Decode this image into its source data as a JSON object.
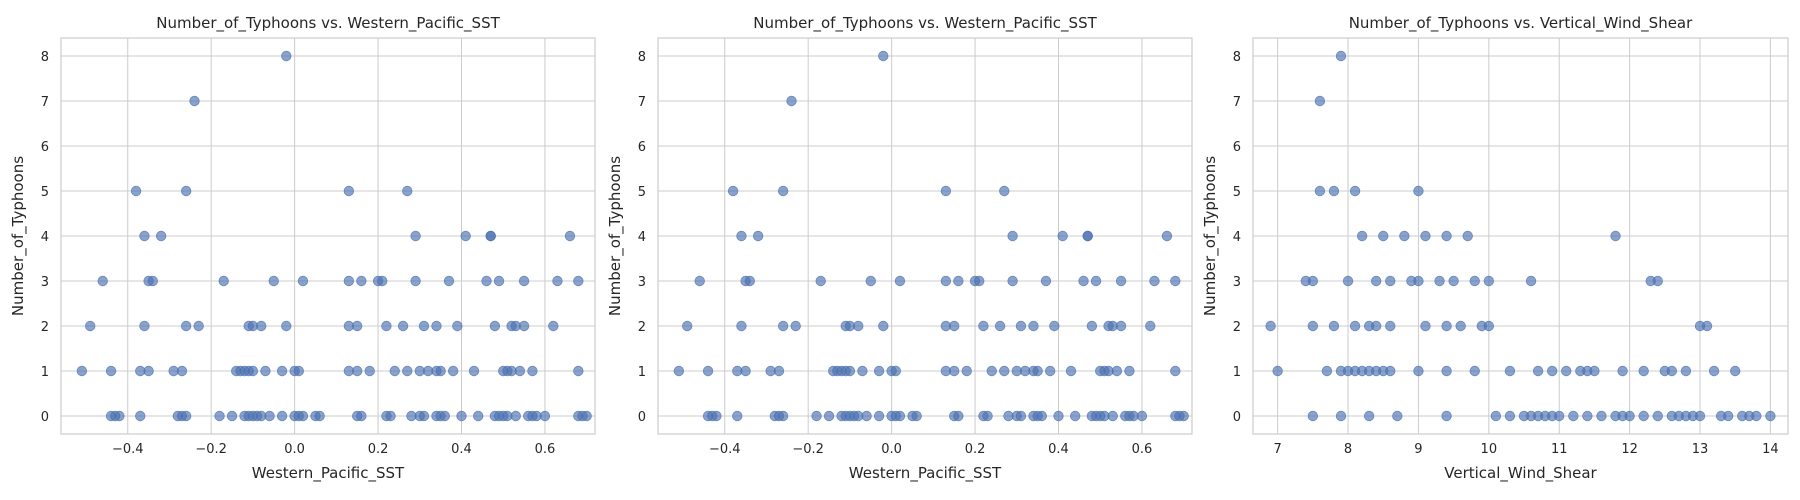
{
  "chart_data": [
    {
      "type": "scatter",
      "title": "Number_of_Typhoons vs. Western_Pacific_SST",
      "xlabel": "Western_Pacific_SST",
      "ylabel": "Number_of_Typhoons",
      "xlim": [
        -0.56,
        0.72
      ],
      "ylim": [
        -0.4,
        8.4
      ],
      "xticks": [
        -0.4,
        -0.2,
        0.0,
        0.2,
        0.4,
        0.6
      ],
      "xtick_labels": [
        "−0.4",
        "−0.2",
        "0.0",
        "0.2",
        "0.4",
        "0.6"
      ],
      "yticks": [
        0,
        1,
        2,
        3,
        4,
        5,
        6,
        7,
        8
      ],
      "ytick_labels": [
        "0",
        "1",
        "2",
        "3",
        "4",
        "5",
        "6",
        "7",
        "8"
      ],
      "grid": true,
      "color": "#4c72b0",
      "points": [
        [
          -0.02,
          8
        ],
        [
          -0.24,
          7
        ],
        [
          -0.38,
          5
        ],
        [
          -0.26,
          5
        ],
        [
          0.13,
          5
        ],
        [
          0.27,
          5
        ],
        [
          -0.36,
          4
        ],
        [
          -0.32,
          4
        ],
        [
          0.29,
          4
        ],
        [
          0.41,
          4
        ],
        [
          0.47,
          4
        ],
        [
          0.47,
          4
        ],
        [
          0.66,
          4
        ],
        [
          -0.46,
          3
        ],
        [
          -0.35,
          3
        ],
        [
          -0.34,
          3
        ],
        [
          -0.17,
          3
        ],
        [
          -0.05,
          3
        ],
        [
          0.02,
          3
        ],
        [
          0.13,
          3
        ],
        [
          0.16,
          3
        ],
        [
          0.2,
          3
        ],
        [
          0.21,
          3
        ],
        [
          0.29,
          3
        ],
        [
          0.37,
          3
        ],
        [
          0.46,
          3
        ],
        [
          0.49,
          3
        ],
        [
          0.55,
          3
        ],
        [
          0.63,
          3
        ],
        [
          0.68,
          3
        ],
        [
          -0.49,
          2
        ],
        [
          -0.36,
          2
        ],
        [
          -0.26,
          2
        ],
        [
          -0.23,
          2
        ],
        [
          -0.11,
          2
        ],
        [
          -0.1,
          2
        ],
        [
          -0.08,
          2
        ],
        [
          -0.02,
          2
        ],
        [
          0.13,
          2
        ],
        [
          0.15,
          2
        ],
        [
          0.22,
          2
        ],
        [
          0.26,
          2
        ],
        [
          0.31,
          2
        ],
        [
          0.34,
          2
        ],
        [
          0.39,
          2
        ],
        [
          0.48,
          2
        ],
        [
          0.52,
          2
        ],
        [
          0.53,
          2
        ],
        [
          0.55,
          2
        ],
        [
          0.62,
          2
        ],
        [
          -0.51,
          1
        ],
        [
          -0.44,
          1
        ],
        [
          -0.37,
          1
        ],
        [
          -0.35,
          1
        ],
        [
          -0.29,
          1
        ],
        [
          -0.27,
          1
        ],
        [
          -0.14,
          1
        ],
        [
          -0.13,
          1
        ],
        [
          -0.12,
          1
        ],
        [
          -0.11,
          1
        ],
        [
          -0.1,
          1
        ],
        [
          -0.07,
          1
        ],
        [
          -0.03,
          1
        ],
        [
          0.0,
          1
        ],
        [
          0.01,
          1
        ],
        [
          0.13,
          1
        ],
        [
          0.15,
          1
        ],
        [
          0.18,
          1
        ],
        [
          0.24,
          1
        ],
        [
          0.27,
          1
        ],
        [
          0.3,
          1
        ],
        [
          0.32,
          1
        ],
        [
          0.34,
          1
        ],
        [
          0.35,
          1
        ],
        [
          0.38,
          1
        ],
        [
          0.43,
          1
        ],
        [
          0.5,
          1
        ],
        [
          0.51,
          1
        ],
        [
          0.52,
          1
        ],
        [
          0.54,
          1
        ],
        [
          0.57,
          1
        ],
        [
          0.68,
          1
        ],
        [
          -0.44,
          0
        ],
        [
          -0.43,
          0
        ],
        [
          -0.42,
          0
        ],
        [
          -0.37,
          0
        ],
        [
          -0.28,
          0
        ],
        [
          -0.27,
          0
        ],
        [
          -0.26,
          0
        ],
        [
          -0.18,
          0
        ],
        [
          -0.15,
          0
        ],
        [
          -0.12,
          0
        ],
        [
          -0.11,
          0
        ],
        [
          -0.1,
          0
        ],
        [
          -0.09,
          0
        ],
        [
          -0.08,
          0
        ],
        [
          -0.06,
          0
        ],
        [
          -0.03,
          0
        ],
        [
          0.0,
          0
        ],
        [
          0.01,
          0
        ],
        [
          0.02,
          0
        ],
        [
          0.05,
          0
        ],
        [
          0.06,
          0
        ],
        [
          0.15,
          0
        ],
        [
          0.16,
          0
        ],
        [
          0.22,
          0
        ],
        [
          0.23,
          0
        ],
        [
          0.28,
          0
        ],
        [
          0.3,
          0
        ],
        [
          0.31,
          0
        ],
        [
          0.34,
          0
        ],
        [
          0.35,
          0
        ],
        [
          0.36,
          0
        ],
        [
          0.4,
          0
        ],
        [
          0.44,
          0
        ],
        [
          0.48,
          0
        ],
        [
          0.49,
          0
        ],
        [
          0.5,
          0
        ],
        [
          0.51,
          0
        ],
        [
          0.53,
          0
        ],
        [
          0.56,
          0
        ],
        [
          0.57,
          0
        ],
        [
          0.58,
          0
        ],
        [
          0.6,
          0
        ],
        [
          0.68,
          0
        ],
        [
          0.69,
          0
        ],
        [
          0.7,
          0
        ]
      ]
    },
    {
      "type": "scatter",
      "title": "Number_of_Typhoons vs. Western_Pacific_SST",
      "xlabel": "Western_Pacific_SST",
      "ylabel": "Number_of_Typhoons",
      "xlim": [
        -0.56,
        0.72
      ],
      "ylim": [
        -0.4,
        8.4
      ],
      "xticks": [
        -0.4,
        -0.2,
        0.0,
        0.2,
        0.4,
        0.6
      ],
      "xtick_labels": [
        "−0.4",
        "−0.2",
        "0.0",
        "0.2",
        "0.4",
        "0.6"
      ],
      "yticks": [
        0,
        1,
        2,
        3,
        4,
        5,
        6,
        7,
        8
      ],
      "ytick_labels": [
        "0",
        "1",
        "2",
        "3",
        "4",
        "5",
        "6",
        "7",
        "8"
      ],
      "grid": true,
      "color": "#4c72b0",
      "points": [
        [
          -0.02,
          8
        ],
        [
          -0.24,
          7
        ],
        [
          -0.38,
          5
        ],
        [
          -0.26,
          5
        ],
        [
          0.13,
          5
        ],
        [
          0.27,
          5
        ],
        [
          -0.36,
          4
        ],
        [
          -0.32,
          4
        ],
        [
          0.29,
          4
        ],
        [
          0.41,
          4
        ],
        [
          0.47,
          4
        ],
        [
          0.47,
          4
        ],
        [
          0.66,
          4
        ],
        [
          -0.46,
          3
        ],
        [
          -0.35,
          3
        ],
        [
          -0.34,
          3
        ],
        [
          -0.17,
          3
        ],
        [
          -0.05,
          3
        ],
        [
          0.02,
          3
        ],
        [
          0.13,
          3
        ],
        [
          0.16,
          3
        ],
        [
          0.2,
          3
        ],
        [
          0.21,
          3
        ],
        [
          0.29,
          3
        ],
        [
          0.37,
          3
        ],
        [
          0.46,
          3
        ],
        [
          0.49,
          3
        ],
        [
          0.55,
          3
        ],
        [
          0.63,
          3
        ],
        [
          0.68,
          3
        ],
        [
          -0.49,
          2
        ],
        [
          -0.36,
          2
        ],
        [
          -0.26,
          2
        ],
        [
          -0.23,
          2
        ],
        [
          -0.11,
          2
        ],
        [
          -0.1,
          2
        ],
        [
          -0.08,
          2
        ],
        [
          -0.02,
          2
        ],
        [
          0.13,
          2
        ],
        [
          0.15,
          2
        ],
        [
          0.22,
          2
        ],
        [
          0.26,
          2
        ],
        [
          0.31,
          2
        ],
        [
          0.34,
          2
        ],
        [
          0.39,
          2
        ],
        [
          0.48,
          2
        ],
        [
          0.52,
          2
        ],
        [
          0.53,
          2
        ],
        [
          0.55,
          2
        ],
        [
          0.62,
          2
        ],
        [
          -0.51,
          1
        ],
        [
          -0.44,
          1
        ],
        [
          -0.37,
          1
        ],
        [
          -0.35,
          1
        ],
        [
          -0.29,
          1
        ],
        [
          -0.27,
          1
        ],
        [
          -0.14,
          1
        ],
        [
          -0.13,
          1
        ],
        [
          -0.12,
          1
        ],
        [
          -0.11,
          1
        ],
        [
          -0.1,
          1
        ],
        [
          -0.07,
          1
        ],
        [
          -0.03,
          1
        ],
        [
          0.0,
          1
        ],
        [
          0.01,
          1
        ],
        [
          0.13,
          1
        ],
        [
          0.15,
          1
        ],
        [
          0.18,
          1
        ],
        [
          0.24,
          1
        ],
        [
          0.27,
          1
        ],
        [
          0.3,
          1
        ],
        [
          0.32,
          1
        ],
        [
          0.34,
          1
        ],
        [
          0.35,
          1
        ],
        [
          0.38,
          1
        ],
        [
          0.43,
          1
        ],
        [
          0.5,
          1
        ],
        [
          0.51,
          1
        ],
        [
          0.52,
          1
        ],
        [
          0.54,
          1
        ],
        [
          0.57,
          1
        ],
        [
          0.68,
          1
        ],
        [
          -0.44,
          0
        ],
        [
          -0.43,
          0
        ],
        [
          -0.42,
          0
        ],
        [
          -0.37,
          0
        ],
        [
          -0.28,
          0
        ],
        [
          -0.27,
          0
        ],
        [
          -0.26,
          0
        ],
        [
          -0.18,
          0
        ],
        [
          -0.15,
          0
        ],
        [
          -0.12,
          0
        ],
        [
          -0.11,
          0
        ],
        [
          -0.1,
          0
        ],
        [
          -0.09,
          0
        ],
        [
          -0.08,
          0
        ],
        [
          -0.06,
          0
        ],
        [
          -0.03,
          0
        ],
        [
          0.0,
          0
        ],
        [
          0.01,
          0
        ],
        [
          0.02,
          0
        ],
        [
          0.05,
          0
        ],
        [
          0.06,
          0
        ],
        [
          0.15,
          0
        ],
        [
          0.16,
          0
        ],
        [
          0.22,
          0
        ],
        [
          0.23,
          0
        ],
        [
          0.28,
          0
        ],
        [
          0.3,
          0
        ],
        [
          0.31,
          0
        ],
        [
          0.34,
          0
        ],
        [
          0.35,
          0
        ],
        [
          0.36,
          0
        ],
        [
          0.4,
          0
        ],
        [
          0.44,
          0
        ],
        [
          0.48,
          0
        ],
        [
          0.49,
          0
        ],
        [
          0.5,
          0
        ],
        [
          0.51,
          0
        ],
        [
          0.53,
          0
        ],
        [
          0.56,
          0
        ],
        [
          0.57,
          0
        ],
        [
          0.58,
          0
        ],
        [
          0.6,
          0
        ],
        [
          0.68,
          0
        ],
        [
          0.69,
          0
        ],
        [
          0.7,
          0
        ]
      ]
    },
    {
      "type": "scatter",
      "title": "Number_of_Typhoons vs. Vertical_Wind_Shear",
      "xlabel": "Vertical_Wind_Shear",
      "ylabel": "Number_of_Typhoons",
      "xlim": [
        6.65,
        14.25
      ],
      "ylim": [
        -0.4,
        8.4
      ],
      "xticks": [
        7,
        8,
        9,
        10,
        11,
        12,
        13,
        14
      ],
      "xtick_labels": [
        "7",
        "8",
        "9",
        "10",
        "11",
        "12",
        "13",
        "14"
      ],
      "yticks": [
        0,
        1,
        2,
        3,
        4,
        5,
        6,
        7,
        8
      ],
      "ytick_labels": [
        "0",
        "1",
        "2",
        "3",
        "4",
        "5",
        "6",
        "7",
        "8"
      ],
      "grid": true,
      "color": "#4c72b0",
      "points": [
        [
          7.9,
          8
        ],
        [
          7.6,
          7
        ],
        [
          7.6,
          5
        ],
        [
          7.8,
          5
        ],
        [
          8.1,
          5
        ],
        [
          9.0,
          5
        ],
        [
          8.2,
          4
        ],
        [
          8.5,
          4
        ],
        [
          8.8,
          4
        ],
        [
          9.1,
          4
        ],
        [
          9.4,
          4
        ],
        [
          9.7,
          4
        ],
        [
          11.8,
          4
        ],
        [
          7.4,
          3
        ],
        [
          7.5,
          3
        ],
        [
          8.0,
          3
        ],
        [
          8.4,
          3
        ],
        [
          8.6,
          3
        ],
        [
          8.9,
          3
        ],
        [
          9.0,
          3
        ],
        [
          9.3,
          3
        ],
        [
          9.5,
          3
        ],
        [
          9.8,
          3
        ],
        [
          10.0,
          3
        ],
        [
          10.6,
          3
        ],
        [
          12.3,
          3
        ],
        [
          12.4,
          3
        ],
        [
          6.9,
          2
        ],
        [
          7.5,
          2
        ],
        [
          7.8,
          2
        ],
        [
          8.1,
          2
        ],
        [
          8.3,
          2
        ],
        [
          8.4,
          2
        ],
        [
          8.6,
          2
        ],
        [
          9.1,
          2
        ],
        [
          9.4,
          2
        ],
        [
          9.6,
          2
        ],
        [
          9.9,
          2
        ],
        [
          10.0,
          2
        ],
        [
          13.0,
          2
        ],
        [
          13.1,
          2
        ],
        [
          7.0,
          1
        ],
        [
          7.7,
          1
        ],
        [
          7.9,
          1
        ],
        [
          8.0,
          1
        ],
        [
          8.1,
          1
        ],
        [
          8.2,
          1
        ],
        [
          8.3,
          1
        ],
        [
          8.4,
          1
        ],
        [
          8.5,
          1
        ],
        [
          8.6,
          1
        ],
        [
          9.0,
          1
        ],
        [
          9.4,
          1
        ],
        [
          9.8,
          1
        ],
        [
          10.3,
          1
        ],
        [
          10.7,
          1
        ],
        [
          10.9,
          1
        ],
        [
          11.1,
          1
        ],
        [
          11.3,
          1
        ],
        [
          11.4,
          1
        ],
        [
          11.5,
          1
        ],
        [
          11.9,
          1
        ],
        [
          12.2,
          1
        ],
        [
          12.5,
          1
        ],
        [
          12.6,
          1
        ],
        [
          12.8,
          1
        ],
        [
          13.2,
          1
        ],
        [
          13.5,
          1
        ],
        [
          7.5,
          0
        ],
        [
          7.9,
          0
        ],
        [
          8.3,
          0
        ],
        [
          8.7,
          0
        ],
        [
          9.4,
          0
        ],
        [
          10.1,
          0
        ],
        [
          10.3,
          0
        ],
        [
          10.5,
          0
        ],
        [
          10.6,
          0
        ],
        [
          10.7,
          0
        ],
        [
          10.8,
          0
        ],
        [
          10.9,
          0
        ],
        [
          11.0,
          0
        ],
        [
          11.2,
          0
        ],
        [
          11.4,
          0
        ],
        [
          11.6,
          0
        ],
        [
          11.8,
          0
        ],
        [
          11.9,
          0
        ],
        [
          12.0,
          0
        ],
        [
          12.2,
          0
        ],
        [
          12.4,
          0
        ],
        [
          12.6,
          0
        ],
        [
          12.7,
          0
        ],
        [
          12.8,
          0
        ],
        [
          12.9,
          0
        ],
        [
          13.0,
          0
        ],
        [
          13.3,
          0
        ],
        [
          13.4,
          0
        ],
        [
          13.6,
          0
        ],
        [
          13.7,
          0
        ],
        [
          13.8,
          0
        ],
        [
          14.0,
          0
        ]
      ]
    }
  ]
}
